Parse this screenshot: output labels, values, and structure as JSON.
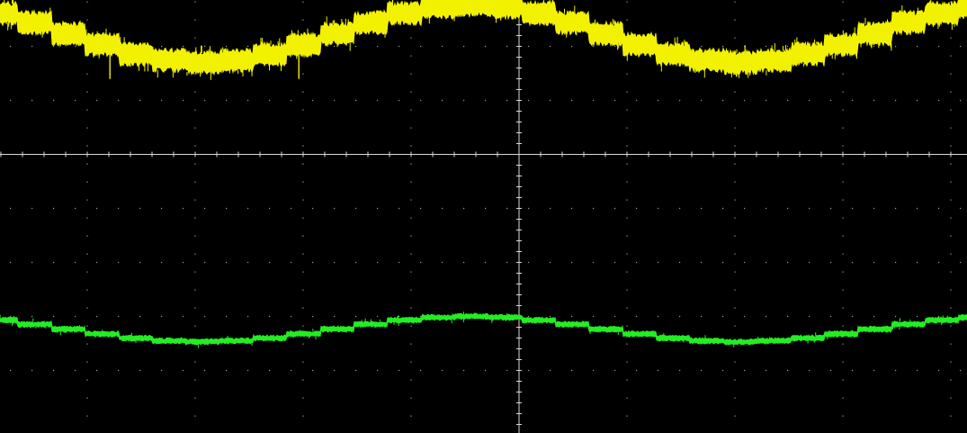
{
  "chart_data": {
    "type": "line",
    "display": "oscilloscope",
    "grid": "dotted",
    "axis_ticks": true,
    "legend": "none",
    "background_color": "#000000",
    "grid_color": "#9a9a9a",
    "axis_color": "#d8d8d8",
    "x_range": [
      -5,
      5
    ],
    "y_range": [
      -4,
      4
    ],
    "x_divisions": 10,
    "y_divisions": 8,
    "series": [
      {
        "color": "#f2f200",
        "period_div": 4.98,
        "min_x_div": -2.93,
        "high_div": 2.77,
        "low_div": 1.7,
        "band_div": 0.35,
        "steps": 16,
        "noise": "heavy"
      },
      {
        "color": "#22ee22",
        "period_div": 4.98,
        "min_x_div": -2.93,
        "high_div": -3.0,
        "low_div": -3.47,
        "band_div": 0.08,
        "steps": 16,
        "noise": "light"
      }
    ]
  }
}
